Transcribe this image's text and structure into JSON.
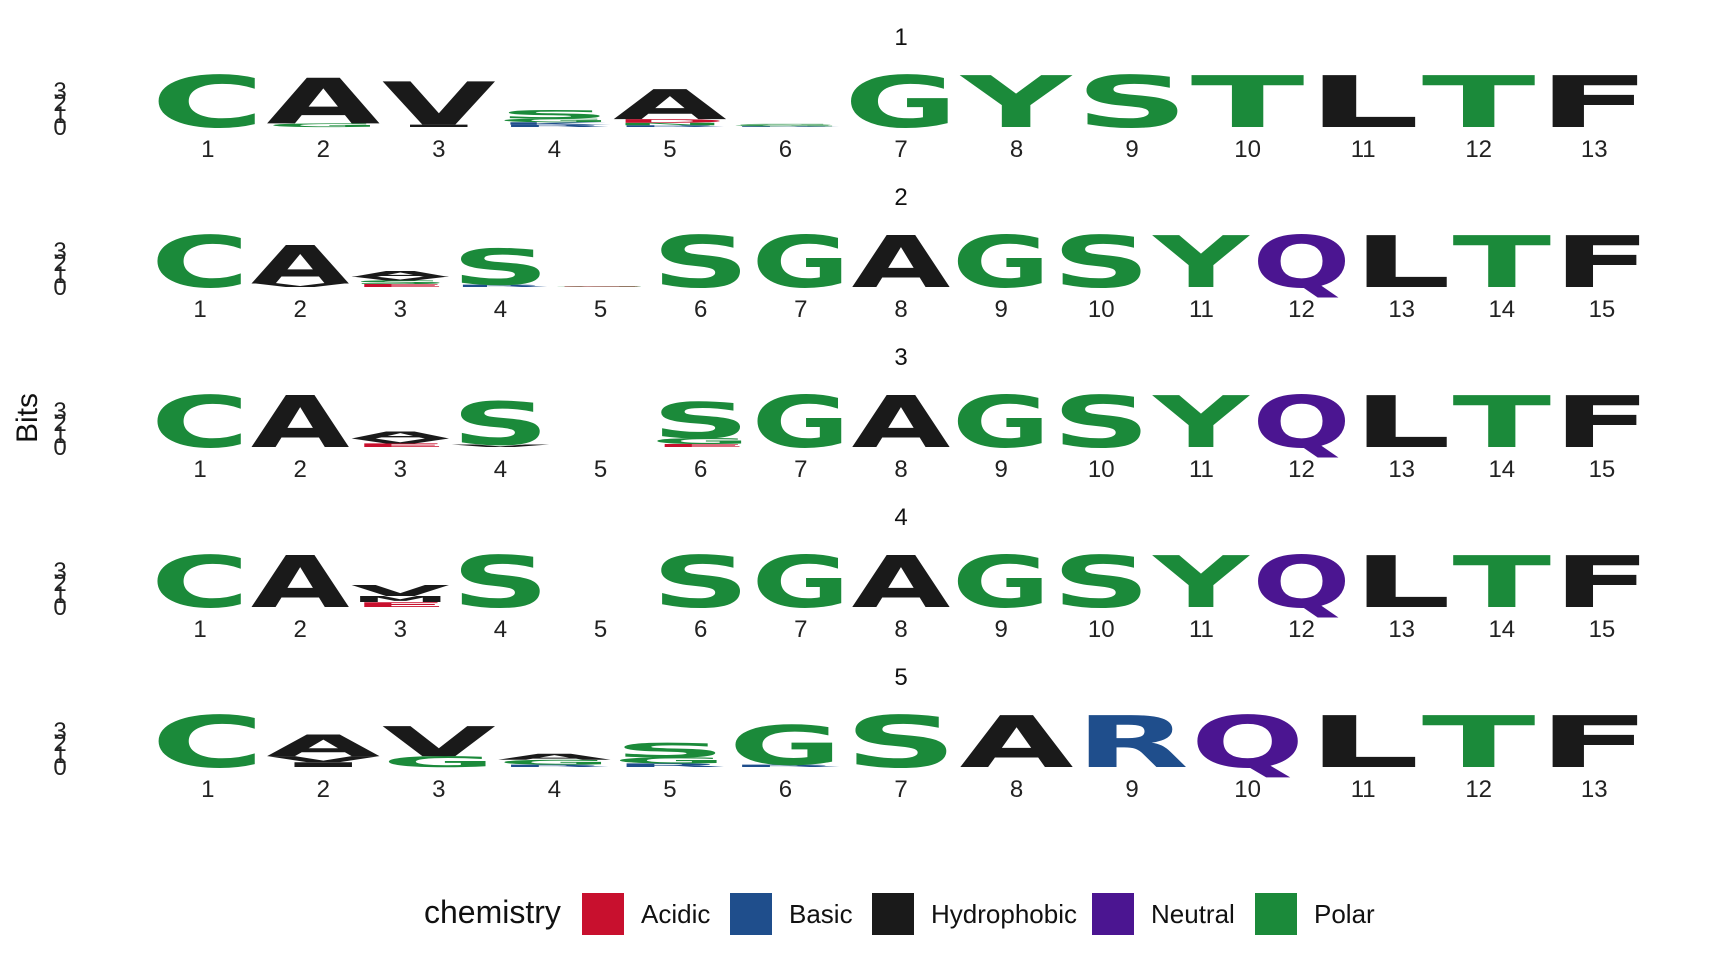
{
  "chart_data": {
    "type": "sequence-logo",
    "ylabel": "Bits",
    "yticks": [
      "0",
      "1",
      "2",
      "3"
    ],
    "ylim": [
      0,
      4.32
    ],
    "colors": {
      "Acidic": "#c8102e",
      "Basic": "#1f4e8c",
      "Hydrophobic": "#1a1a1a",
      "Neutral": "#4b1591",
      "Polar": "#1b8a3a"
    },
    "legend": {
      "title": "chemistry",
      "entries": [
        "Acidic",
        "Basic",
        "Hydrophobic",
        "Neutral",
        "Polar"
      ],
      "position": "bottom"
    },
    "panels": [
      {
        "title": "1",
        "positions": [
          [
            {
              "l": "C",
              "bits": 4.32,
              "chem": "Polar"
            }
          ],
          [
            {
              "l": "A",
              "bits": 3.8,
              "chem": "Hydrophobic"
            },
            {
              "l": "G",
              "bits": 0.3,
              "chem": "Polar"
            }
          ],
          [
            {
              "l": "V",
              "bits": 3.6,
              "chem": "Hydrophobic"
            },
            {
              "l": "I",
              "bits": 0.2,
              "chem": "Hydrophobic"
            }
          ],
          [
            {
              "l": "S",
              "bits": 0.7,
              "chem": "Polar"
            },
            {
              "l": "G",
              "bits": 0.3,
              "chem": "Polar"
            },
            {
              "l": "R",
              "bits": 0.2,
              "chem": "Basic"
            },
            {
              "l": "K",
              "bits": 0.2,
              "chem": "Basic"
            }
          ],
          [
            {
              "l": "A",
              "bits": 2.5,
              "chem": "Hydrophobic"
            },
            {
              "l": "D",
              "bits": 0.3,
              "chem": "Acidic"
            },
            {
              "l": "N",
              "bits": 0.2,
              "chem": "Polar"
            },
            {
              "l": "R",
              "bits": 0.15,
              "chem": "Basic"
            }
          ],
          [
            {
              "l": "S",
              "bits": 0.12,
              "chem": "Polar"
            },
            {
              "l": "G",
              "bits": 0.08,
              "chem": "Polar"
            },
            {
              "l": "R",
              "bits": 0.06,
              "chem": "Basic"
            }
          ],
          [
            {
              "l": "G",
              "bits": 4.32,
              "chem": "Polar"
            }
          ],
          [
            {
              "l": "Y",
              "bits": 4.32,
              "chem": "Polar"
            }
          ],
          [
            {
              "l": "S",
              "bits": 4.32,
              "chem": "Polar"
            }
          ],
          [
            {
              "l": "T",
              "bits": 4.32,
              "chem": "Polar"
            }
          ],
          [
            {
              "l": "L",
              "bits": 4.32,
              "chem": "Hydrophobic"
            }
          ],
          [
            {
              "l": "T",
              "bits": 4.32,
              "chem": "Polar"
            }
          ],
          [
            {
              "l": "F",
              "bits": 4.32,
              "chem": "Hydrophobic"
            }
          ]
        ]
      },
      {
        "title": "2",
        "positions": [
          [
            {
              "l": "C",
              "bits": 4.32,
              "chem": "Polar"
            }
          ],
          [
            {
              "l": "A",
              "bits": 3.2,
              "chem": "Hydrophobic"
            },
            {
              "l": "V",
              "bits": 0.3,
              "chem": "Hydrophobic"
            }
          ],
          [
            {
              "l": "A",
              "bits": 0.5,
              "chem": "Hydrophobic"
            },
            {
              "l": "S",
              "bits": 0.3,
              "chem": "Polar"
            },
            {
              "l": "V",
              "bits": 0.3,
              "chem": "Hydrophobic"
            },
            {
              "l": "E",
              "bits": 0.25,
              "chem": "Acidic"
            }
          ],
          [
            {
              "l": "S",
              "bits": 3.0,
              "chem": "Polar"
            },
            {
              "l": "R",
              "bits": 0.2,
              "chem": "Basic"
            }
          ],
          [
            {
              "l": "G",
              "bits": 0.05,
              "chem": "Polar"
            },
            {
              "l": "E",
              "bits": 0.03,
              "chem": "Acidic"
            }
          ],
          [
            {
              "l": "S",
              "bits": 4.32,
              "chem": "Polar"
            }
          ],
          [
            {
              "l": "G",
              "bits": 4.32,
              "chem": "Polar"
            }
          ],
          [
            {
              "l": "A",
              "bits": 4.32,
              "chem": "Hydrophobic"
            }
          ],
          [
            {
              "l": "G",
              "bits": 4.32,
              "chem": "Polar"
            }
          ],
          [
            {
              "l": "S",
              "bits": 4.32,
              "chem": "Polar"
            }
          ],
          [
            {
              "l": "Y",
              "bits": 4.32,
              "chem": "Polar"
            }
          ],
          [
            {
              "l": "Q",
              "bits": 4.32,
              "chem": "Neutral"
            }
          ],
          [
            {
              "l": "L",
              "bits": 4.32,
              "chem": "Hydrophobic"
            }
          ],
          [
            {
              "l": "T",
              "bits": 4.32,
              "chem": "Polar"
            }
          ],
          [
            {
              "l": "F",
              "bits": 4.32,
              "chem": "Hydrophobic"
            }
          ]
        ]
      },
      {
        "title": "3",
        "positions": [
          [
            {
              "l": "C",
              "bits": 4.32,
              "chem": "Polar"
            }
          ],
          [
            {
              "l": "A",
              "bits": 4.32,
              "chem": "Hydrophobic"
            }
          ],
          [
            {
              "l": "A",
              "bits": 0.6,
              "chem": "Hydrophobic"
            },
            {
              "l": "V",
              "bits": 0.4,
              "chem": "Hydrophobic"
            },
            {
              "l": "E",
              "bits": 0.3,
              "chem": "Acidic"
            }
          ],
          [
            {
              "l": "S",
              "bits": 3.6,
              "chem": "Polar"
            },
            {
              "l": "V",
              "bits": 0.2,
              "chem": "Hydrophobic"
            }
          ],
          [],
          [
            {
              "l": "S",
              "bits": 3.0,
              "chem": "Polar"
            },
            {
              "l": "G",
              "bits": 0.5,
              "chem": "Polar"
            },
            {
              "l": "E",
              "bits": 0.25,
              "chem": "Acidic"
            }
          ],
          [
            {
              "l": "G",
              "bits": 4.32,
              "chem": "Polar"
            }
          ],
          [
            {
              "l": "A",
              "bits": 4.32,
              "chem": "Hydrophobic"
            }
          ],
          [
            {
              "l": "G",
              "bits": 4.32,
              "chem": "Polar"
            }
          ],
          [
            {
              "l": "S",
              "bits": 4.32,
              "chem": "Polar"
            }
          ],
          [
            {
              "l": "Y",
              "bits": 4.32,
              "chem": "Polar"
            }
          ],
          [
            {
              "l": "Q",
              "bits": 4.32,
              "chem": "Neutral"
            }
          ],
          [
            {
              "l": "L",
              "bits": 4.32,
              "chem": "Hydrophobic"
            }
          ],
          [
            {
              "l": "T",
              "bits": 4.32,
              "chem": "Polar"
            }
          ],
          [
            {
              "l": "F",
              "bits": 4.32,
              "chem": "Hydrophobic"
            }
          ]
        ]
      },
      {
        "title": "4",
        "positions": [
          [
            {
              "l": "C",
              "bits": 4.32,
              "chem": "Polar"
            }
          ],
          [
            {
              "l": "A",
              "bits": 4.32,
              "chem": "Hydrophobic"
            }
          ],
          [
            {
              "l": "V",
              "bits": 0.9,
              "chem": "Hydrophobic"
            },
            {
              "l": "M",
              "bits": 0.5,
              "chem": "Hydrophobic"
            },
            {
              "l": "E",
              "bits": 0.4,
              "chem": "Acidic"
            }
          ],
          [
            {
              "l": "S",
              "bits": 4.32,
              "chem": "Polar"
            }
          ],
          [],
          [
            {
              "l": "S",
              "bits": 4.32,
              "chem": "Polar"
            }
          ],
          [
            {
              "l": "G",
              "bits": 4.32,
              "chem": "Polar"
            }
          ],
          [
            {
              "l": "A",
              "bits": 4.32,
              "chem": "Hydrophobic"
            }
          ],
          [
            {
              "l": "G",
              "bits": 4.32,
              "chem": "Polar"
            }
          ],
          [
            {
              "l": "S",
              "bits": 4.32,
              "chem": "Polar"
            }
          ],
          [
            {
              "l": "Y",
              "bits": 4.32,
              "chem": "Polar"
            }
          ],
          [
            {
              "l": "Q",
              "bits": 4.32,
              "chem": "Neutral"
            }
          ],
          [
            {
              "l": "L",
              "bits": 4.32,
              "chem": "Hydrophobic"
            }
          ],
          [
            {
              "l": "T",
              "bits": 4.32,
              "chem": "Polar"
            }
          ],
          [
            {
              "l": "F",
              "bits": 4.32,
              "chem": "Hydrophobic"
            }
          ]
        ]
      },
      {
        "title": "5",
        "positions": [
          [
            {
              "l": "C",
              "bits": 4.32,
              "chem": "Polar"
            }
          ],
          [
            {
              "l": "A",
              "bits": 1.8,
              "chem": "Hydrophobic"
            },
            {
              "l": "V",
              "bits": 0.5,
              "chem": "Hydrophobic"
            },
            {
              "l": "I",
              "bits": 0.4,
              "chem": "Hydrophobic"
            }
          ],
          [
            {
              "l": "V",
              "bits": 2.5,
              "chem": "Hydrophobic"
            },
            {
              "l": "G",
              "bits": 0.9,
              "chem": "Polar"
            }
          ],
          [
            {
              "l": "A",
              "bits": 0.5,
              "chem": "Hydrophobic"
            },
            {
              "l": "G",
              "bits": 0.4,
              "chem": "Polar"
            },
            {
              "l": "R",
              "bits": 0.2,
              "chem": "Basic"
            }
          ],
          [
            {
              "l": "S",
              "bits": 1.2,
              "chem": "Polar"
            },
            {
              "l": "G",
              "bits": 0.5,
              "chem": "Polar"
            },
            {
              "l": "R",
              "bits": 0.3,
              "chem": "Basic"
            }
          ],
          [
            {
              "l": "G",
              "bits": 3.3,
              "chem": "Polar"
            },
            {
              "l": "R",
              "bits": 0.2,
              "chem": "Basic"
            }
          ],
          [
            {
              "l": "S",
              "bits": 4.32,
              "chem": "Polar"
            }
          ],
          [
            {
              "l": "A",
              "bits": 4.32,
              "chem": "Hydrophobic"
            }
          ],
          [
            {
              "l": "R",
              "bits": 4.32,
              "chem": "Basic"
            }
          ],
          [
            {
              "l": "Q",
              "bits": 4.32,
              "chem": "Neutral"
            }
          ],
          [
            {
              "l": "L",
              "bits": 4.32,
              "chem": "Hydrophobic"
            }
          ],
          [
            {
              "l": "T",
              "bits": 4.32,
              "chem": "Polar"
            }
          ],
          [
            {
              "l": "F",
              "bits": 4.32,
              "chem": "Hydrophobic"
            }
          ]
        ]
      }
    ]
  }
}
